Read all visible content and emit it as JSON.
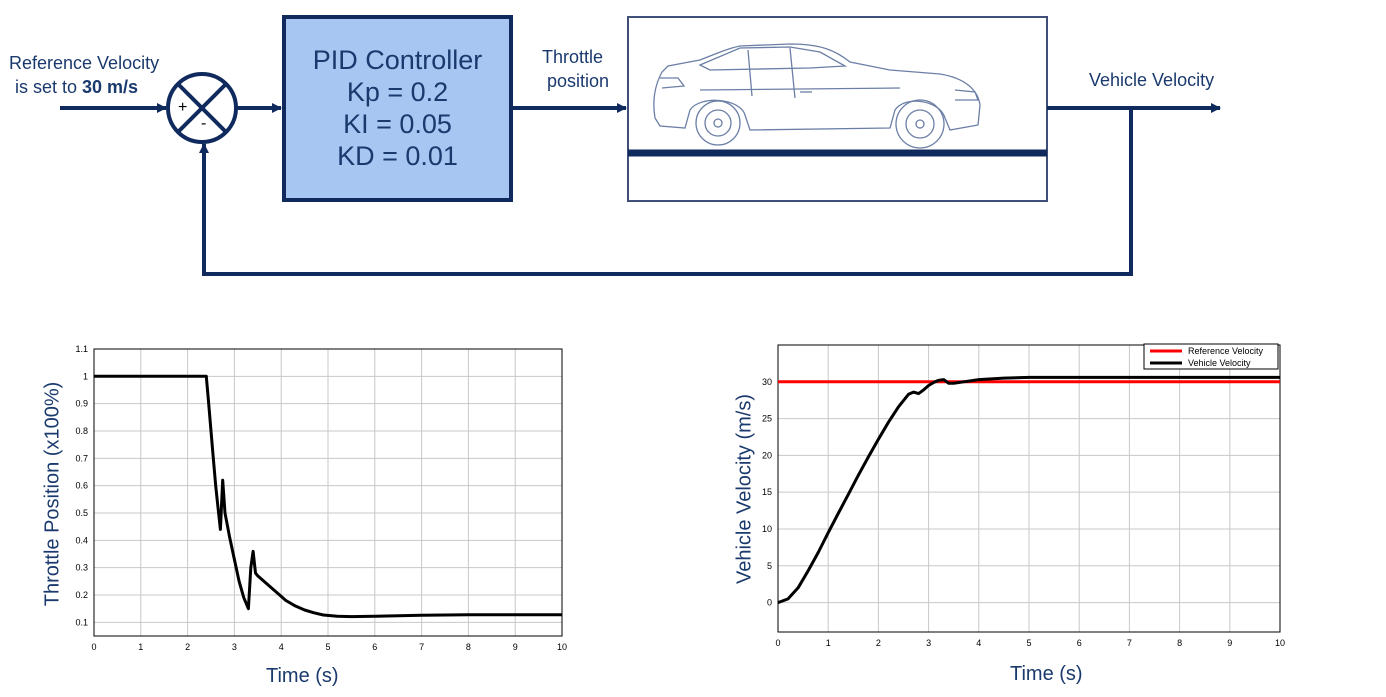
{
  "diagram": {
    "reference_label_line1": "Reference Velocity",
    "reference_label_line2_prefix": "is set to ",
    "reference_label_line2_bold": "30 m/s",
    "sum_plus": "+",
    "sum_minus": "-",
    "pid": {
      "title": "PID Controller",
      "kp": "Kp = 0.2",
      "ki": "KI = 0.05",
      "kd": "KD = 0.01"
    },
    "throttle_label_line1": "Throttle",
    "throttle_label_line2": "position",
    "output_label": "Vehicle Velocity",
    "colors": {
      "line": "#102a5e",
      "pid_fill": "#a7c6f2",
      "text": "#1a3a6e"
    }
  },
  "chart_data": [
    {
      "type": "line",
      "xlabel": "Time (s)",
      "ylabel": "Throttle Position (x100%)",
      "xlim": [
        0,
        10
      ],
      "ylim": [
        0.05,
        1.1
      ],
      "xticks": [
        "0",
        "1",
        "2",
        "3",
        "4",
        "5",
        "6",
        "7",
        "8",
        "9",
        "10"
      ],
      "yticks": [
        "0.1",
        "0.2",
        "0.3",
        "0.4",
        "0.5",
        "0.6",
        "0.7",
        "0.8",
        "0.9",
        "1",
        "1.1"
      ],
      "grid": true,
      "series": [
        {
          "color": "#000000",
          "x": [
            0,
            2.4,
            2.45,
            2.5,
            2.55,
            2.6,
            2.65,
            2.7,
            2.75,
            2.8,
            2.9,
            3.0,
            3.1,
            3.2,
            3.3,
            3.35,
            3.4,
            3.45,
            3.5,
            3.7,
            3.9,
            4.1,
            4.3,
            4.5,
            4.7,
            4.9,
            5.2,
            5.5,
            6,
            7,
            8,
            9,
            10
          ],
          "y": [
            1.0,
            1.0,
            0.9,
            0.8,
            0.7,
            0.6,
            0.52,
            0.44,
            0.62,
            0.5,
            0.41,
            0.33,
            0.25,
            0.19,
            0.15,
            0.3,
            0.36,
            0.28,
            0.27,
            0.24,
            0.21,
            0.18,
            0.16,
            0.145,
            0.135,
            0.127,
            0.122,
            0.121,
            0.122,
            0.126,
            0.128,
            0.128,
            0.128
          ]
        }
      ]
    },
    {
      "type": "line",
      "xlabel": "Time (s)",
      "ylabel": "Vehicle Velocity (m/s)",
      "xlim": [
        0,
        10
      ],
      "ylim": [
        -4,
        35
      ],
      "xticks": [
        "0",
        "1",
        "2",
        "3",
        "4",
        "5",
        "6",
        "7",
        "8",
        "9",
        "10"
      ],
      "yticks": [
        "0",
        "5",
        "10",
        "15",
        "20",
        "25",
        "30"
      ],
      "grid": true,
      "legend": "top-right",
      "series": [
        {
          "name": "Reference Velocity",
          "color": "#ff0000",
          "x": [
            0,
            10
          ],
          "y": [
            30,
            30
          ]
        },
        {
          "name": "Vehicle Velocity",
          "color": "#000000",
          "x": [
            0,
            0.2,
            0.4,
            0.6,
            0.8,
            1.0,
            1.2,
            1.4,
            1.6,
            1.8,
            2.0,
            2.2,
            2.4,
            2.6,
            2.7,
            2.8,
            2.9,
            3.0,
            3.1,
            3.2,
            3.3,
            3.4,
            3.5,
            3.7,
            4.0,
            4.5,
            5,
            6,
            7,
            8,
            9,
            10
          ],
          "y": [
            0,
            0.5,
            2,
            4.3,
            6.8,
            9.5,
            12.1,
            14.7,
            17.3,
            19.8,
            22.2,
            24.5,
            26.6,
            28.3,
            28.6,
            28.4,
            28.9,
            29.5,
            29.9,
            30.2,
            30.3,
            29.8,
            29.8,
            30.0,
            30.3,
            30.5,
            30.6,
            30.6,
            30.6,
            30.6,
            30.6,
            30.6
          ]
        }
      ]
    }
  ]
}
